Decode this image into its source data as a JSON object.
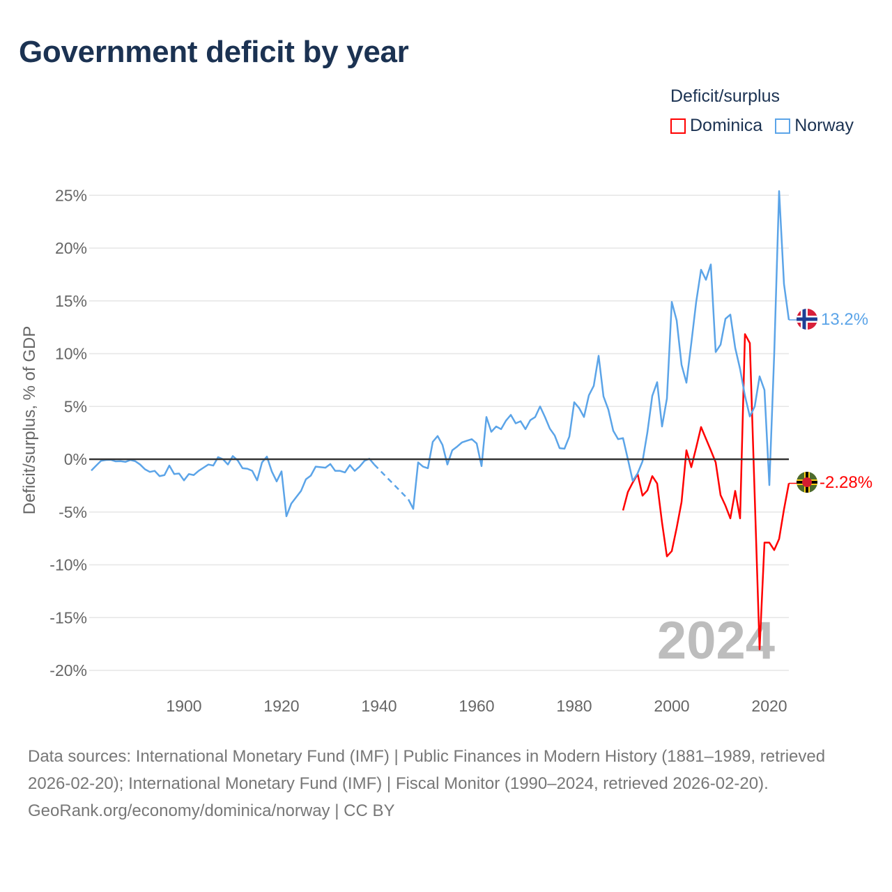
{
  "chart_data": {
    "type": "line",
    "title": "Government deficit by year",
    "ylabel": "Deficit/surplus, % of GDP",
    "xlabel": "",
    "ylim": [
      -22,
      26
    ],
    "xlim": [
      1880.5,
      2024
    ],
    "yticks": [
      -20,
      -15,
      -10,
      -5,
      0,
      5,
      10,
      15,
      20,
      25
    ],
    "ytick_labels": [
      "-20%",
      "-15%",
      "-10%",
      "-5%",
      "0%",
      "5%",
      "10%",
      "15%",
      "20%",
      "25%"
    ],
    "xticks": [
      1900,
      1920,
      1940,
      1960,
      1980,
      2000,
      2020
    ],
    "xtick_labels": [
      "1900",
      "1920",
      "1940",
      "1960",
      "1980",
      "2000",
      "2020"
    ],
    "legend_title": "Deficit/surplus",
    "legend_position": "top-right",
    "grid": true,
    "current_year_label": "2024",
    "series": [
      {
        "name": "Dominica",
        "color": "#ff0000",
        "start_year": 1990,
        "end_label": "-2.28%",
        "values": [
          -4.85,
          -3.1,
          -2.2,
          -1.4,
          -3.45,
          -2.95,
          -1.6,
          -2.3,
          -6.0,
          -9.2,
          -8.7,
          -6.5,
          -4.05,
          0.85,
          -0.75,
          1.1,
          3.05,
          1.95,
          0.85,
          -0.3,
          -3.4,
          -4.4,
          -5.6,
          -3.0,
          -5.6,
          11.85,
          11.0,
          -3.5,
          -18.0,
          -7.9,
          -7.9,
          -8.6,
          -7.55,
          -4.75,
          -2.28
        ]
      },
      {
        "name": "Norway",
        "color": "#5ba4e8",
        "start_year": 1881,
        "end_label": "13.2%",
        "values": [
          -1.07,
          -0.6,
          -0.15,
          -0.07,
          -0.05,
          -0.2,
          -0.18,
          -0.25,
          -0.07,
          -0.18,
          -0.5,
          -0.95,
          -1.2,
          -1.1,
          -1.6,
          -1.5,
          -0.6,
          -1.4,
          -1.35,
          -2.0,
          -1.4,
          -1.5,
          -1.1,
          -0.8,
          -0.5,
          -0.6,
          0.2,
          0.0,
          -0.5,
          0.3,
          -0.1,
          -0.85,
          -0.9,
          -1.1,
          -2.0,
          -0.3,
          0.25,
          -1.15,
          -2.1,
          -1.15,
          -5.4,
          -4.2,
          -3.6,
          -3.0,
          -1.9,
          -1.55,
          -0.7,
          -0.75,
          -0.8,
          -0.45,
          -1.1,
          -1.1,
          -1.25,
          -0.55,
          -1.1,
          -0.7,
          -0.15,
          0.05,
          -0.5,
          null,
          null,
          null,
          null,
          null,
          null,
          -3.8,
          -4.7,
          -0.3,
          -0.7,
          -0.85,
          1.65,
          2.2,
          1.35,
          -0.5,
          0.85,
          1.2,
          1.6,
          1.75,
          1.9,
          1.5,
          -0.65,
          4.0,
          2.6,
          3.1,
          2.85,
          3.65,
          4.2,
          3.4,
          3.6,
          2.85,
          3.7,
          4.0,
          5.0,
          4.0,
          2.9,
          2.25,
          1.05,
          1.0,
          2.15,
          5.4,
          4.85,
          4.0,
          6.05,
          6.95,
          9.8,
          5.95,
          4.7,
          2.7,
          1.9,
          2.0,
          0,
          -2.05,
          -1.33,
          -0.2,
          2.55,
          6.0,
          7.3,
          3.1,
          5.75,
          14.9,
          13.15,
          8.95,
          7.25,
          11.0,
          14.9,
          17.95,
          17.0,
          18.45,
          10.15,
          10.85,
          13.3,
          13.7,
          10.55,
          8.55,
          6.0,
          4.05,
          5.0,
          7.85,
          6.55,
          -2.45,
          10.0,
          25.4,
          16.6,
          13.2
        ]
      }
    ]
  },
  "footer": {
    "sources": "Data sources: International Monetary Fund (IMF) | Public Finances in Modern History (1881–1989, retrieved 2026-02-20); International Monetary Fund (IMF) | Fiscal Monitor (1990–2024, retrieved 2026-02-20).",
    "credit": "GeoRank.org/economy/dominica/norway | CC BY"
  }
}
